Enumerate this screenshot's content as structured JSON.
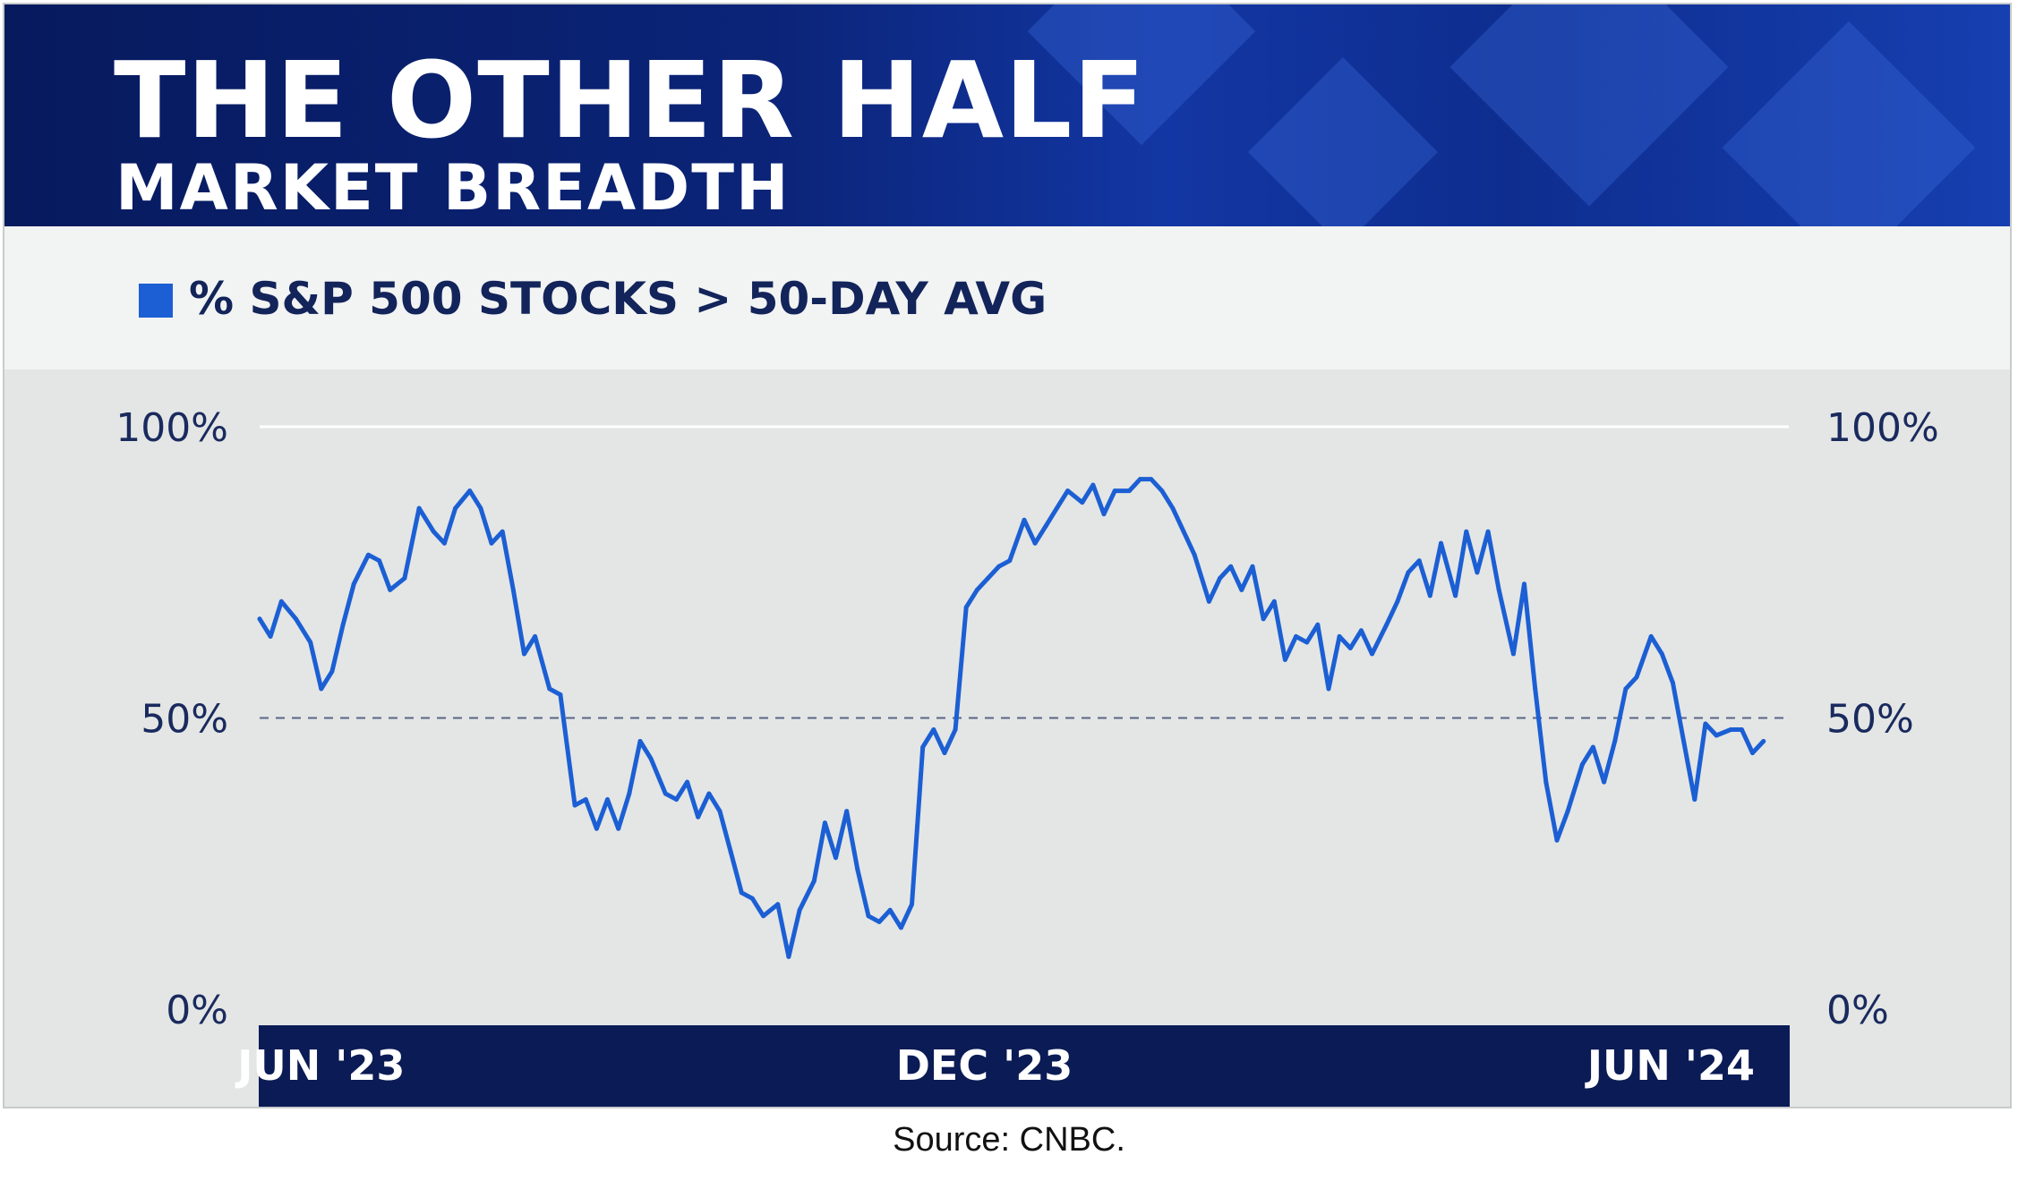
{
  "title": "THE OTHER HALF",
  "subtitle": "MARKET BREADTH",
  "source": "Source: CNBC.",
  "colors": {
    "line": "#1c5fd4",
    "header_dark": "#071a5e",
    "axis_band": "#0b1b55",
    "tick_text": "#1a2a5e",
    "panel": "#e3e6e4",
    "reference_line": "#5a6488"
  },
  "chart_data": {
    "type": "line",
    "legend": "% S&P 500 STOCKS > 50-DAY AVG",
    "y_ticks": [
      "100%",
      "50%",
      "0%"
    ],
    "y_tick_values": [
      100,
      50,
      0
    ],
    "x_ticks": [
      "JUN '23",
      "DEC '23",
      "JUN '24"
    ],
    "x_tick_dates": [
      "2023-06-01",
      "2023-12-01",
      "2024-06-01"
    ],
    "ylim": [
      0,
      100
    ],
    "xlim": [
      "2023-05-15",
      "2024-07-10"
    ],
    "grid": "top gridline at 100%, dashed reference line at 50%",
    "dual_y_axis": true,
    "series": [
      {
        "values": [
          [
            "2023-05-15",
            67
          ],
          [
            "2023-05-18",
            64
          ],
          [
            "2023-05-21",
            70
          ],
          [
            "2023-05-25",
            67
          ],
          [
            "2023-05-29",
            63
          ],
          [
            "2023-06-01",
            55
          ],
          [
            "2023-06-04",
            58
          ],
          [
            "2023-06-07",
            66
          ],
          [
            "2023-06-10",
            73
          ],
          [
            "2023-06-14",
            78
          ],
          [
            "2023-06-17",
            77
          ],
          [
            "2023-06-20",
            72
          ],
          [
            "2023-06-24",
            74
          ],
          [
            "2023-06-28",
            86
          ],
          [
            "2023-07-02",
            82
          ],
          [
            "2023-07-05",
            80
          ],
          [
            "2023-07-08",
            86
          ],
          [
            "2023-07-12",
            89
          ],
          [
            "2023-07-15",
            86
          ],
          [
            "2023-07-18",
            80
          ],
          [
            "2023-07-21",
            82
          ],
          [
            "2023-07-24",
            72
          ],
          [
            "2023-07-27",
            61
          ],
          [
            "2023-07-30",
            64
          ],
          [
            "2023-08-03",
            55
          ],
          [
            "2023-08-06",
            54
          ],
          [
            "2023-08-10",
            35
          ],
          [
            "2023-08-13",
            36
          ],
          [
            "2023-08-16",
            31
          ],
          [
            "2023-08-19",
            36
          ],
          [
            "2023-08-22",
            31
          ],
          [
            "2023-08-25",
            37
          ],
          [
            "2023-08-28",
            46
          ],
          [
            "2023-08-31",
            43
          ],
          [
            "2023-09-04",
            37
          ],
          [
            "2023-09-07",
            36
          ],
          [
            "2023-09-10",
            39
          ],
          [
            "2023-09-13",
            33
          ],
          [
            "2023-09-16",
            37
          ],
          [
            "2023-09-19",
            34
          ],
          [
            "2023-09-22",
            27
          ],
          [
            "2023-09-25",
            20
          ],
          [
            "2023-09-28",
            19
          ],
          [
            "2023-10-01",
            16
          ],
          [
            "2023-10-05",
            18
          ],
          [
            "2023-10-08",
            9
          ],
          [
            "2023-10-11",
            17
          ],
          [
            "2023-10-15",
            22
          ],
          [
            "2023-10-18",
            32
          ],
          [
            "2023-10-21",
            26
          ],
          [
            "2023-10-24",
            34
          ],
          [
            "2023-10-27",
            24
          ],
          [
            "2023-10-30",
            16
          ],
          [
            "2023-11-02",
            15
          ],
          [
            "2023-11-05",
            17
          ],
          [
            "2023-11-08",
            14
          ],
          [
            "2023-11-11",
            18
          ],
          [
            "2023-11-14",
            45
          ],
          [
            "2023-11-17",
            48
          ],
          [
            "2023-11-20",
            44
          ],
          [
            "2023-11-23",
            48
          ],
          [
            "2023-11-26",
            69
          ],
          [
            "2023-11-29",
            72
          ],
          [
            "2023-12-02",
            74
          ],
          [
            "2023-12-05",
            76
          ],
          [
            "2023-12-08",
            77
          ],
          [
            "2023-12-12",
            84
          ],
          [
            "2023-12-15",
            80
          ],
          [
            "2023-12-18",
            83
          ],
          [
            "2023-12-21",
            86
          ],
          [
            "2023-12-24",
            89
          ],
          [
            "2023-12-28",
            87
          ],
          [
            "2023-12-31",
            90
          ],
          [
            "2024-01-03",
            85
          ],
          [
            "2024-01-06",
            89
          ],
          [
            "2024-01-10",
            89
          ],
          [
            "2024-01-13",
            91
          ],
          [
            "2024-01-16",
            91
          ],
          [
            "2024-01-19",
            89
          ],
          [
            "2024-01-22",
            86
          ],
          [
            "2024-01-25",
            82
          ],
          [
            "2024-01-28",
            78
          ],
          [
            "2024-02-01",
            70
          ],
          [
            "2024-02-04",
            74
          ],
          [
            "2024-02-07",
            76
          ],
          [
            "2024-02-10",
            72
          ],
          [
            "2024-02-13",
            76
          ],
          [
            "2024-02-16",
            67
          ],
          [
            "2024-02-19",
            70
          ],
          [
            "2024-02-22",
            60
          ],
          [
            "2024-02-25",
            64
          ],
          [
            "2024-02-28",
            63
          ],
          [
            "2024-03-02",
            66
          ],
          [
            "2024-03-05",
            55
          ],
          [
            "2024-03-08",
            64
          ],
          [
            "2024-03-11",
            62
          ],
          [
            "2024-03-14",
            65
          ],
          [
            "2024-03-17",
            61
          ],
          [
            "2024-03-21",
            66
          ],
          [
            "2024-03-24",
            70
          ],
          [
            "2024-03-27",
            75
          ],
          [
            "2024-03-30",
            77
          ],
          [
            "2024-04-02",
            71
          ],
          [
            "2024-04-05",
            80
          ],
          [
            "2024-04-09",
            71
          ],
          [
            "2024-04-12",
            82
          ],
          [
            "2024-04-15",
            75
          ],
          [
            "2024-04-18",
            82
          ],
          [
            "2024-04-21",
            72
          ],
          [
            "2024-04-25",
            61
          ],
          [
            "2024-04-28",
            73
          ],
          [
            "2024-05-01",
            55
          ],
          [
            "2024-05-04",
            39
          ],
          [
            "2024-05-07",
            29
          ],
          [
            "2024-05-10",
            34
          ],
          [
            "2024-05-14",
            42
          ],
          [
            "2024-05-17",
            45
          ],
          [
            "2024-05-20",
            39
          ],
          [
            "2024-05-23",
            46
          ],
          [
            "2024-05-26",
            55
          ],
          [
            "2024-05-29",
            57
          ],
          [
            "2024-06-02",
            64
          ],
          [
            "2024-06-05",
            61
          ],
          [
            "2024-06-08",
            56
          ],
          [
            "2024-06-11",
            46
          ],
          [
            "2024-06-14",
            36
          ],
          [
            "2024-06-17",
            49
          ],
          [
            "2024-06-20",
            47
          ],
          [
            "2024-06-24",
            48
          ],
          [
            "2024-06-27",
            48
          ],
          [
            "2024-06-30",
            44
          ],
          [
            "2024-07-03",
            46
          ]
        ]
      }
    ]
  }
}
